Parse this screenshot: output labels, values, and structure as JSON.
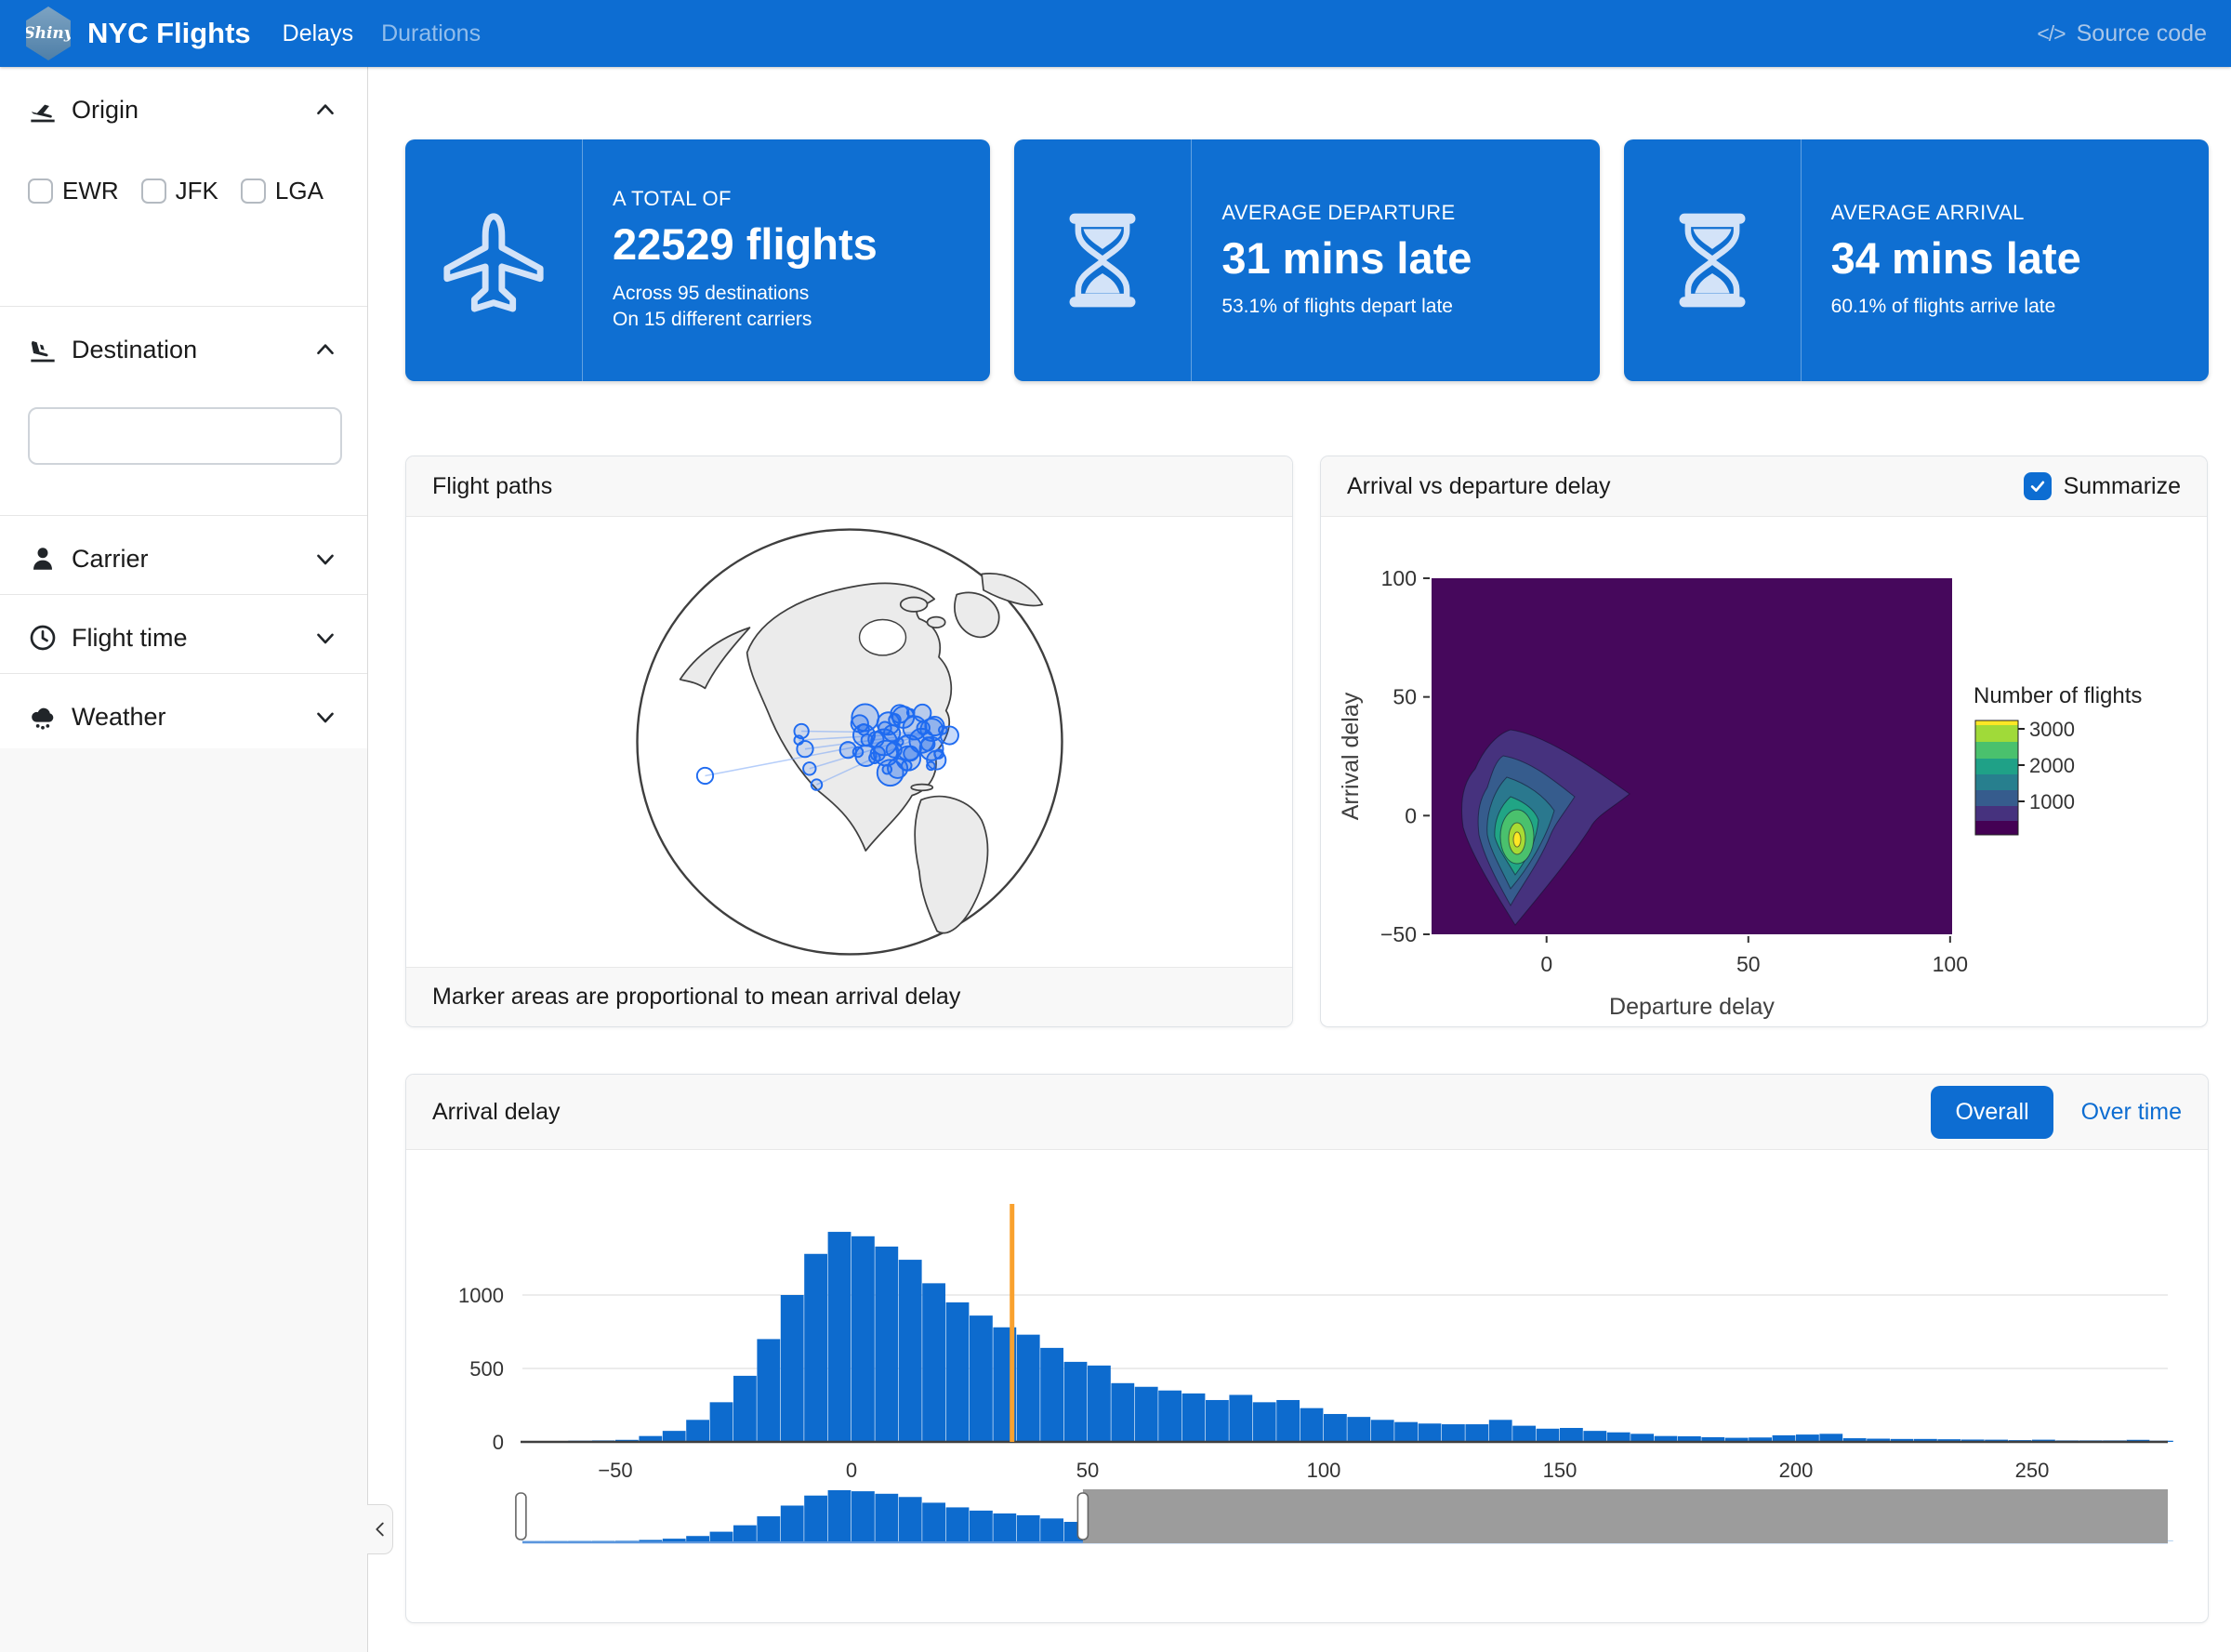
{
  "navbar": {
    "logo_text": "Shiny",
    "brand": "NYC Flights",
    "tabs": [
      {
        "label": "Delays",
        "active": true
      },
      {
        "label": "Durations",
        "active": false
      }
    ],
    "source_label": "Source code",
    "source_icon_glyph": "</>"
  },
  "sidebar": {
    "sections": [
      {
        "label": "Origin",
        "icon": "plane-departure-icon",
        "expanded": true,
        "checkboxes": [
          {
            "label": "EWR",
            "checked": false
          },
          {
            "label": "JFK",
            "checked": false
          },
          {
            "label": "LGA",
            "checked": false
          }
        ]
      },
      {
        "label": "Destination",
        "icon": "plane-arrival-icon",
        "expanded": true,
        "input_value": ""
      },
      {
        "label": "Carrier",
        "icon": "user-icon",
        "expanded": false
      },
      {
        "label": "Flight time",
        "icon": "clock-icon",
        "expanded": false
      },
      {
        "label": "Weather",
        "icon": "cloud-rain-icon",
        "expanded": false
      }
    ]
  },
  "value_boxes": [
    {
      "icon": "plane-icon",
      "title": "A TOTAL OF",
      "value": "22529 flights",
      "subtitles": [
        "Across 95 destinations",
        "On 15 different carriers"
      ]
    },
    {
      "icon": "hourglass-icon",
      "title": "AVERAGE DEPARTURE",
      "value": "31 mins late",
      "subtitles": [
        "53.1% of flights depart late"
      ]
    },
    {
      "icon": "hourglass-icon",
      "title": "AVERAGE ARRIVAL",
      "value": "34 mins late",
      "subtitles": [
        "60.1% of flights arrive late"
      ]
    }
  ],
  "flight_paths_card": {
    "title": "Flight paths",
    "footer": "Marker areas are proportional to mean arrival delay"
  },
  "scatter_card": {
    "title": "Arrival vs departure delay",
    "checkbox_label": "Summarize",
    "checked": true
  },
  "delay_card": {
    "title": "Arrival delay",
    "tabs": [
      {
        "label": "Overall",
        "active": true
      },
      {
        "label": "Over time",
        "active": false
      }
    ]
  },
  "colors": {
    "primary_blue": "#0d6dd2",
    "histogram_bar": "#0d6bce",
    "mean_line_orange": "#f9a12e",
    "brush_overlay_gray": "#9c9c9c",
    "contour_background": "#46085c"
  },
  "chart_data": [
    {
      "type": "heatmap",
      "title": "Arrival vs departure delay",
      "xlabel": "Departure delay",
      "ylabel": "Arrival delay",
      "xlim": [
        -28.5,
        100.5
      ],
      "ylim": [
        -50,
        100
      ],
      "x_ticks": [
        0,
        50,
        100
      ],
      "y_ticks": [
        100,
        50,
        0,
        -50
      ],
      "legend_title": "Number of flights",
      "legend_ticks": [
        3000,
        2000,
        1000
      ],
      "legend_segments": [
        {
          "color": "#fde725",
          "h": 5
        },
        {
          "color": "#a0da39",
          "h": 18
        },
        {
          "color": "#4ac16d",
          "h": 18
        },
        {
          "color": "#1fa187",
          "h": 17
        },
        {
          "color": "#277f8e",
          "h": 17
        },
        {
          "color": "#365c8d",
          "h": 17
        },
        {
          "color": "#46327e",
          "h": 16
        },
        {
          "color": "#440154",
          "h": 15
        }
      ],
      "palette": "viridis",
      "background": "#46085c",
      "peak": {
        "x": -5,
        "y": -9,
        "value": 3400
      },
      "description": "2D density of arrival vs departure delay; dense ridge from (-8,-45) to (-8,35) with peak near (-5,-9) and a lobe extending right to about x=22 at y=10."
    },
    {
      "type": "bar",
      "subtype": "histogram",
      "title": "Arrival delay (Overall)",
      "bin_start": -70,
      "bin_width": 5,
      "counts": [
        5,
        6,
        8,
        10,
        14,
        40,
        75,
        150,
        270,
        450,
        700,
        1000,
        1280,
        1430,
        1400,
        1330,
        1240,
        1080,
        950,
        860,
        780,
        730,
        640,
        545,
        520,
        400,
        375,
        350,
        330,
        285,
        320,
        270,
        285,
        230,
        190,
        170,
        150,
        135,
        125,
        120,
        120,
        150,
        110,
        90,
        95,
        75,
        65,
        55,
        40,
        38,
        32,
        28,
        30,
        45,
        50,
        55,
        25,
        22,
        20,
        20,
        18,
        16,
        15,
        12,
        15,
        10,
        10,
        10,
        14,
        8
      ],
      "x_ticks": [
        -50,
        0,
        50,
        100,
        150,
        200,
        250
      ],
      "y_ticks": [
        0,
        500,
        1000
      ],
      "ylim": [
        0,
        1600
      ],
      "mean_line_x": 34,
      "brush_selected_range": [
        -70,
        49
      ],
      "grid": true
    },
    {
      "type": "map",
      "projection": "orthographic-globe",
      "description": "Globe centered on North America; blue circle markers at US destinations (area proportional to mean arrival delay), dense in the eastern US, with flight-path lines to west-coast cities and Hawaii."
    }
  ]
}
